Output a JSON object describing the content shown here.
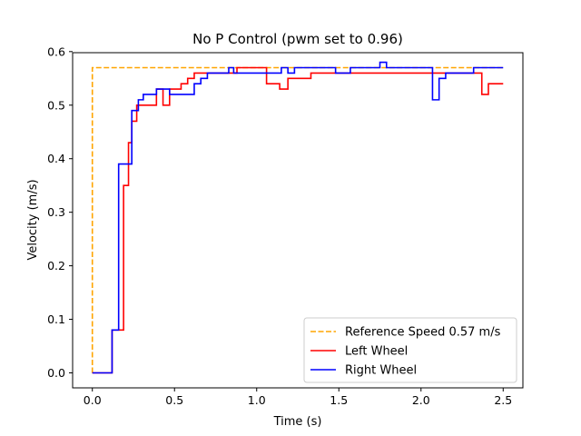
{
  "chart_data": {
    "type": "line",
    "title": "No P Control (pwm set to 0.96)",
    "xlabel": "Time (s)",
    "ylabel": "Velocity (m/s)",
    "xlim": [
      -0.12,
      2.62
    ],
    "ylim": [
      -0.028,
      0.598
    ],
    "xticks": [
      0.0,
      0.5,
      1.0,
      1.5,
      2.0,
      2.5
    ],
    "xtick_labels": [
      "0.0",
      "0.5",
      "1.0",
      "1.5",
      "2.0",
      "2.5"
    ],
    "yticks": [
      0.0,
      0.1,
      0.2,
      0.3,
      0.4,
      0.5,
      0.6
    ],
    "ytick_labels": [
      "0.0",
      "0.1",
      "0.2",
      "0.3",
      "0.4",
      "0.5",
      "0.6"
    ],
    "grid": false,
    "legend_position": "lower-right",
    "series": [
      {
        "name": "Reference Speed 0.57 m/s",
        "color": "#ffa500",
        "style": "dashed",
        "step": false,
        "x": [
          0.0,
          0.0,
          2.5
        ],
        "y": [
          0.0,
          0.57,
          0.57
        ]
      },
      {
        "name": "Left Wheel",
        "color": "#ff0000",
        "style": "solid",
        "step": true,
        "x": [
          0.0,
          0.12,
          0.19,
          0.22,
          0.24,
          0.27,
          0.31,
          0.39,
          0.43,
          0.47,
          0.54,
          0.58,
          0.62,
          0.77,
          0.88,
          1.06,
          1.14,
          1.19,
          1.33,
          1.6,
          2.2,
          2.37,
          2.41,
          2.5
        ],
        "y": [
          0.0,
          0.08,
          0.35,
          0.43,
          0.47,
          0.5,
          0.5,
          0.53,
          0.5,
          0.53,
          0.54,
          0.55,
          0.56,
          0.56,
          0.57,
          0.54,
          0.53,
          0.55,
          0.56,
          0.56,
          0.56,
          0.52,
          0.54,
          0.54
        ]
      },
      {
        "name": "Right Wheel",
        "color": "#0000ff",
        "style": "solid",
        "step": true,
        "x": [
          0.0,
          0.12,
          0.16,
          0.24,
          0.28,
          0.31,
          0.39,
          0.47,
          0.62,
          0.66,
          0.7,
          0.83,
          0.86,
          1.06,
          1.15,
          1.19,
          1.23,
          1.48,
          1.57,
          1.75,
          1.79,
          2.07,
          2.11,
          2.15,
          2.28,
          2.32,
          2.5
        ],
        "y": [
          0.0,
          0.08,
          0.39,
          0.49,
          0.51,
          0.52,
          0.53,
          0.52,
          0.54,
          0.55,
          0.56,
          0.57,
          0.56,
          0.56,
          0.57,
          0.56,
          0.57,
          0.56,
          0.57,
          0.58,
          0.57,
          0.51,
          0.55,
          0.56,
          0.56,
          0.57,
          0.57
        ]
      }
    ]
  }
}
